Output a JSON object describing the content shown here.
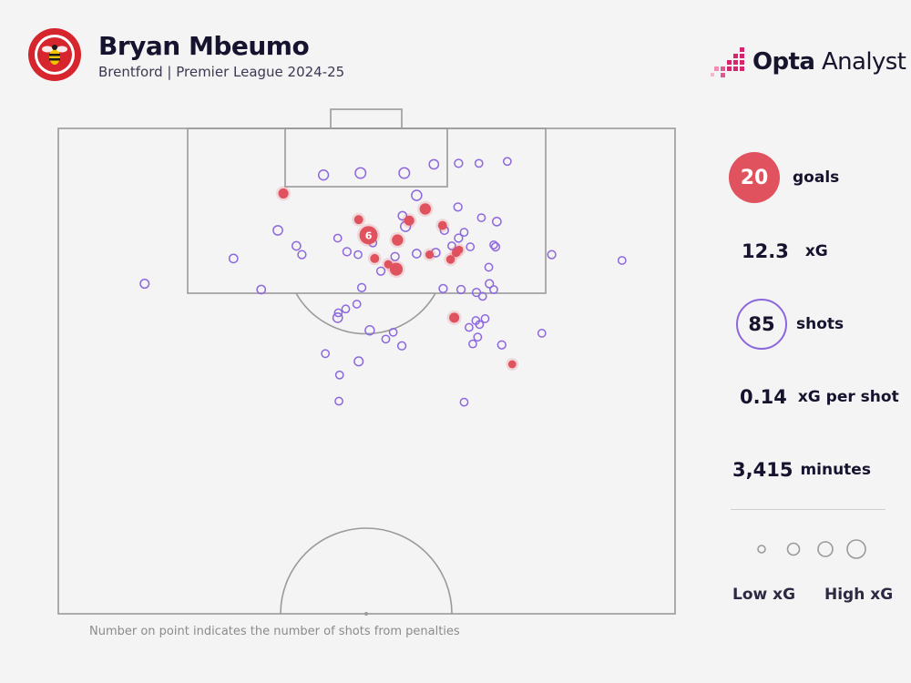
{
  "header": {
    "player_name": "Bryan Mbeumo",
    "subtitle": "Brentford | Premier League 2024-25",
    "crest_text": "BRENTFORD FOOTBALL CLUB",
    "brand_bold": "Opta",
    "brand_light": "Analyst"
  },
  "colors": {
    "goal": "#e0525d",
    "shot": "#8d67dd",
    "pitch_line": "#9a9a9a",
    "background": "#f4f4f4",
    "crest_red": "#d6252d",
    "brand_pink": "#d6246e"
  },
  "stats": {
    "goals_value": "20",
    "goals_label": "goals",
    "xg_value": "12.3",
    "xg_label": "xG",
    "shots_value": "85",
    "shots_label": "shots",
    "xg_per_shot_value": "0.14",
    "xg_per_shot_label": "xG per shot",
    "minutes_value": "3,415",
    "minutes_label": "minutes"
  },
  "legend": {
    "low_label": "Low xG",
    "high_label": "High xG"
  },
  "footnote": "Number on point indicates the number of shots from penalties",
  "chart_data": {
    "type": "scatter",
    "pitch": "opta half pitch, attacking goal at top",
    "x_axis": "pitch width (opta units, 0-100, left to right)",
    "y_axis": "distance from goal line (opta units, 0-50)",
    "series": [
      {
        "name": "goals",
        "points": [
          {
            "x": 50.3,
            "y": 11.0,
            "xg": 0.76,
            "label": "6"
          },
          {
            "x": 36.5,
            "y": 6.7,
            "xg": 0.1
          },
          {
            "x": 56.9,
            "y": 9.5,
            "xg": 0.1
          },
          {
            "x": 59.5,
            "y": 8.3,
            "xg": 0.16
          },
          {
            "x": 48.7,
            "y": 9.4,
            "xg": 0.06
          },
          {
            "x": 55.0,
            "y": 11.5,
            "xg": 0.16
          },
          {
            "x": 51.3,
            "y": 13.4,
            "xg": 0.06
          },
          {
            "x": 54.8,
            "y": 14.5,
            "xg": 0.26
          },
          {
            "x": 53.5,
            "y": 14.0,
            "xg": 0.04
          },
          {
            "x": 62.3,
            "y": 10.0,
            "xg": 0.06
          },
          {
            "x": 64.5,
            "y": 12.8,
            "xg": 0.05
          },
          {
            "x": 63.6,
            "y": 13.5,
            "xg": 0.05
          },
          {
            "x": 65.0,
            "y": 12.5,
            "xg": 0.03
          },
          {
            "x": 60.2,
            "y": 13.0,
            "xg": 0.04
          },
          {
            "x": 64.2,
            "y": 19.5,
            "xg": 0.1
          },
          {
            "x": 73.6,
            "y": 24.3,
            "xg": 0.03
          }
        ]
      },
      {
        "name": "shots",
        "points": [
          {
            "x": 49.0,
            "y": 4.6,
            "xg": 0.12
          },
          {
            "x": 56.1,
            "y": 4.6,
            "xg": 0.12
          },
          {
            "x": 60.9,
            "y": 3.7,
            "xg": 0.07
          },
          {
            "x": 43.0,
            "y": 4.8,
            "xg": 0.09
          },
          {
            "x": 58.1,
            "y": 6.9,
            "xg": 0.1
          },
          {
            "x": 64.9,
            "y": 3.6,
            "xg": 0.03
          },
          {
            "x": 68.2,
            "y": 3.6,
            "xg": 0.02
          },
          {
            "x": 72.8,
            "y": 3.4,
            "xg": 0.02
          },
          {
            "x": 35.6,
            "y": 10.5,
            "xg": 0.07
          },
          {
            "x": 38.6,
            "y": 12.1,
            "xg": 0.04
          },
          {
            "x": 45.3,
            "y": 11.3,
            "xg": 0.02
          },
          {
            "x": 46.8,
            "y": 12.7,
            "xg": 0.03
          },
          {
            "x": 55.8,
            "y": 9.0,
            "xg": 0.04
          },
          {
            "x": 56.3,
            "y": 10.1,
            "xg": 0.09
          },
          {
            "x": 62.6,
            "y": 10.5,
            "xg": 0.03
          },
          {
            "x": 64.8,
            "y": 8.1,
            "xg": 0.03
          },
          {
            "x": 65.8,
            "y": 10.7,
            "xg": 0.02
          },
          {
            "x": 68.6,
            "y": 9.2,
            "xg": 0.02
          },
          {
            "x": 71.1,
            "y": 9.6,
            "xg": 0.04
          },
          {
            "x": 64.9,
            "y": 11.3,
            "xg": 0.03
          },
          {
            "x": 66.8,
            "y": 12.2,
            "xg": 0.02
          },
          {
            "x": 70.9,
            "y": 12.2,
            "xg": 0.03
          },
          {
            "x": 80.0,
            "y": 13.0,
            "xg": 0.03
          },
          {
            "x": 61.2,
            "y": 12.8,
            "xg": 0.04
          },
          {
            "x": 58.1,
            "y": 12.9,
            "xg": 0.04
          },
          {
            "x": 54.6,
            "y": 13.2,
            "xg": 0.03
          },
          {
            "x": 63.8,
            "y": 12.1,
            "xg": 0.02
          },
          {
            "x": 70.6,
            "y": 12.0,
            "xg": 0.02
          },
          {
            "x": 52.3,
            "y": 14.7,
            "xg": 0.03
          },
          {
            "x": 65.3,
            "y": 16.6,
            "xg": 0.03
          },
          {
            "x": 62.4,
            "y": 16.5,
            "xg": 0.03
          },
          {
            "x": 69.9,
            "y": 16.0,
            "xg": 0.03
          },
          {
            "x": 70.6,
            "y": 16.6,
            "xg": 0.02
          },
          {
            "x": 68.8,
            "y": 17.3,
            "xg": 0.02
          },
          {
            "x": 67.8,
            "y": 16.9,
            "xg": 0.03
          },
          {
            "x": 69.8,
            "y": 14.3,
            "xg": 0.02
          },
          {
            "x": 39.5,
            "y": 13.0,
            "xg": 0.03
          },
          {
            "x": 49.2,
            "y": 16.4,
            "xg": 0.03
          },
          {
            "x": 46.6,
            "y": 18.6,
            "xg": 0.02
          },
          {
            "x": 45.4,
            "y": 19.0,
            "xg": 0.02
          },
          {
            "x": 48.4,
            "y": 18.1,
            "xg": 0.02
          },
          {
            "x": 32.9,
            "y": 16.6,
            "xg": 0.04
          },
          {
            "x": 54.3,
            "y": 21.0,
            "xg": 0.02
          },
          {
            "x": 53.1,
            "y": 21.7,
            "xg": 0.02
          },
          {
            "x": 55.7,
            "y": 22.4,
            "xg": 0.03
          },
          {
            "x": 43.3,
            "y": 23.2,
            "xg": 0.02
          },
          {
            "x": 48.7,
            "y": 24.0,
            "xg": 0.05
          },
          {
            "x": 50.5,
            "y": 20.8,
            "xg": 0.06
          },
          {
            "x": 45.3,
            "y": 19.5,
            "xg": 0.07
          },
          {
            "x": 66.6,
            "y": 20.5,
            "xg": 0.02
          },
          {
            "x": 68.3,
            "y": 20.2,
            "xg": 0.02
          },
          {
            "x": 69.2,
            "y": 19.6,
            "xg": 0.02
          },
          {
            "x": 68.0,
            "y": 21.5,
            "xg": 0.02
          },
          {
            "x": 67.2,
            "y": 22.2,
            "xg": 0.02
          },
          {
            "x": 71.9,
            "y": 22.3,
            "xg": 0.03
          },
          {
            "x": 78.4,
            "y": 21.1,
            "xg": 0.02
          },
          {
            "x": 67.7,
            "y": 19.8,
            "xg": 0.02
          },
          {
            "x": 45.6,
            "y": 25.4,
            "xg": 0.02
          },
          {
            "x": 65.8,
            "y": 28.2,
            "xg": 0.02
          },
          {
            "x": 45.5,
            "y": 28.1,
            "xg": 0.02
          },
          {
            "x": 91.4,
            "y": 13.6,
            "xg": 0.02
          },
          {
            "x": 28.4,
            "y": 13.4,
            "xg": 0.04
          },
          {
            "x": 14.0,
            "y": 16.0,
            "xg": 0.05
          },
          {
            "x": 51.0,
            "y": 11.8,
            "xg": 0.02
          },
          {
            "x": 48.6,
            "y": 13.0,
            "xg": 0.02
          }
        ]
      }
    ],
    "legend_sizes": [
      "Low xG",
      "High xG"
    ]
  }
}
